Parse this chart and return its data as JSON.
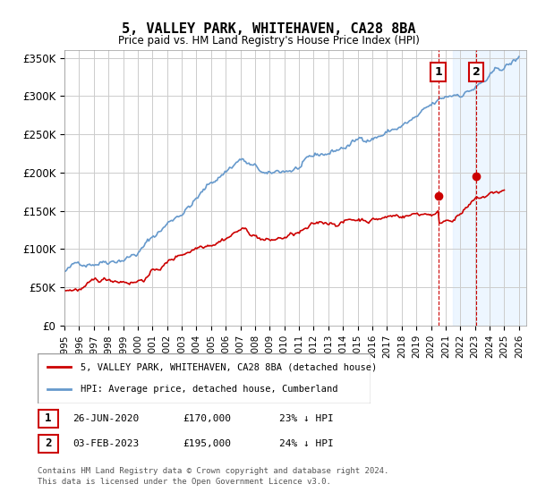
{
  "title": "5, VALLEY PARK, WHITEHAVEN, CA28 8BA",
  "subtitle": "Price paid vs. HM Land Registry's House Price Index (HPI)",
  "ylabel_ticks": [
    "£0",
    "£50K",
    "£100K",
    "£150K",
    "£200K",
    "£250K",
    "£300K",
    "£350K"
  ],
  "ytick_values": [
    0,
    50000,
    100000,
    150000,
    200000,
    250000,
    300000,
    350000
  ],
  "ylim": [
    0,
    360000
  ],
  "xlim_start": 1995.0,
  "xlim_end": 2026.5,
  "hpi_color": "#6699cc",
  "price_color": "#cc0000",
  "background_color": "#ffffff",
  "grid_color": "#cccccc",
  "shade_color": "#ddeeff",
  "transaction1_date": "26-JUN-2020",
  "transaction1_price": "£170,000",
  "transaction1_pct": "23% ↓ HPI",
  "transaction1_year": 2020.49,
  "transaction1_value": 170000,
  "transaction2_date": "03-FEB-2023",
  "transaction2_price": "£195,000",
  "transaction2_pct": "24% ↓ HPI",
  "transaction2_year": 2023.09,
  "transaction2_value": 195000,
  "legend_label1": "5, VALLEY PARK, WHITEHAVEN, CA28 8BA (detached house)",
  "legend_label2": "HPI: Average price, detached house, Cumberland",
  "footer1": "Contains HM Land Registry data © Crown copyright and database right 2024.",
  "footer2": "This data is licensed under the Open Government Licence v3.0.",
  "xtick_years": [
    1995,
    1996,
    1997,
    1998,
    1999,
    2000,
    2001,
    2002,
    2003,
    2004,
    2005,
    2006,
    2007,
    2008,
    2009,
    2010,
    2011,
    2012,
    2013,
    2014,
    2015,
    2016,
    2017,
    2018,
    2019,
    2020,
    2021,
    2022,
    2023,
    2024,
    2025,
    2026
  ]
}
